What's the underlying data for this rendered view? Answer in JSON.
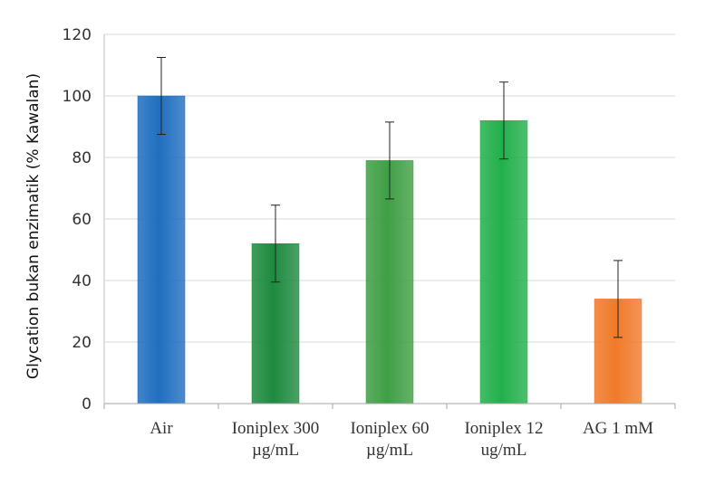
{
  "chart_data": {
    "type": "bar",
    "title": "",
    "xlabel": "",
    "ylabel": "Glycation bukan enzimatik (% Kawalan)",
    "ylim": [
      0,
      120
    ],
    "yticks": [
      0,
      20,
      40,
      60,
      80,
      100,
      120
    ],
    "grid": true,
    "categories": [
      [
        "Air"
      ],
      [
        "Ioniplex 300",
        "µg/mL"
      ],
      [
        "Ioniplex 60",
        "µg/mL"
      ],
      [
        "Ioniplex 12",
        "ug/mL"
      ],
      [
        "AG 1 mM"
      ]
    ],
    "values": [
      100,
      52,
      79,
      92,
      34
    ],
    "errors": [
      12.5,
      12.5,
      12.5,
      12.5,
      12.5
    ],
    "colors": [
      "#1f6fbf",
      "#1e8a3f",
      "#3f9f45",
      "#22b04b",
      "#f07a2a"
    ]
  }
}
